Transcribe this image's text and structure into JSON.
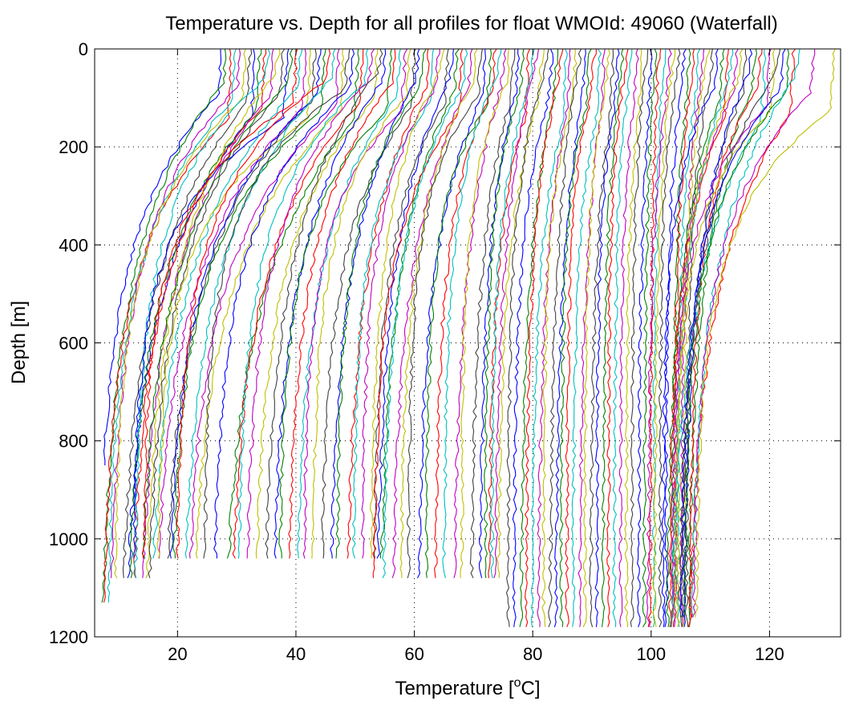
{
  "chart_data": {
    "type": "line",
    "title": "Temperature vs. Depth for all profiles for float WMOId: 49060 (Waterfall)",
    "xlabel_main": "Temperature [",
    "xlabel_sup": "o",
    "xlabel_tail": "C]",
    "ylabel": "Depth [m]",
    "xlim": [
      6,
      132
    ],
    "ylim": [
      0,
      1200
    ],
    "y_reversed": true,
    "grid": true,
    "x_ticks": [
      20,
      40,
      60,
      80,
      100,
      120
    ],
    "y_ticks": [
      0,
      200,
      400,
      600,
      800,
      1000,
      1200
    ],
    "x_tick_labels": [
      "20",
      "40",
      "60",
      "80",
      "100",
      "120"
    ],
    "y_tick_labels": [
      "0",
      "200",
      "400",
      "600",
      "800",
      "1000",
      "1200"
    ],
    "color_cycle": [
      "#0000ff",
      "#008000",
      "#ff0000",
      "#00bfbf",
      "#bf00bf",
      "#bfbf00",
      "#404040"
    ],
    "series_groups": [
      {
        "start_offset": 0,
        "count": 1,
        "surface_x": [
          27.5
        ],
        "bottom_x": [
          6.5
        ],
        "max_depth": 850
      },
      {
        "start_offset": 0.8,
        "count": 3,
        "surface_x": [
          28.3,
          29.1,
          29.9
        ],
        "bottom_x": [
          6.8,
          7.3,
          7.8
        ],
        "max_depth": 1130
      },
      {
        "start_offset": 0,
        "count": 10,
        "surface_x": [
          30.7,
          31.5,
          32.3,
          33.1,
          33.9,
          34.7,
          35.5,
          36.3,
          37.1,
          37.9
        ],
        "bottom_x": [
          8.5,
          9.2,
          9.9,
          10.6,
          11.3,
          12.0,
          12.7,
          13.4,
          14.1,
          14.5
        ],
        "max_depth": 1085
      },
      {
        "start_offset": 0,
        "count": 13,
        "surface_x": [
          38.5,
          39.3,
          40.1,
          40.9,
          41.7,
          42.5,
          43.3,
          44.1,
          44.9,
          45.7,
          46.5,
          47.3,
          48.1
        ],
        "bottom_x": [
          12.5,
          13.3,
          14.1,
          14.9,
          15.7,
          16.5,
          17.3,
          18.1,
          18.9,
          19.7,
          20.5,
          21.3,
          22.1
        ],
        "max_depth": 1040
      },
      {
        "start_offset": 0,
        "count": 12,
        "surface_x": [
          48.9,
          49.7,
          50.5,
          51.3,
          52.1,
          52.9,
          53.7,
          54.5,
          55.3,
          56.1,
          56.9,
          57.7
        ],
        "bottom_x": [
          24.5,
          25.9,
          27.3,
          28.7,
          30.1,
          31.5,
          32.9,
          34.3,
          35.7,
          37.1,
          38.5,
          39.9
        ],
        "max_depth": 1040
      },
      {
        "start_offset": 0,
        "count": 12,
        "surface_x": [
          58.5,
          59.3,
          60.1,
          60.9,
          61.7,
          62.5,
          63.3,
          64.1,
          64.9,
          65.7,
          66.5,
          67.3
        ],
        "bottom_x": [
          41.3,
          42.7,
          44.1,
          45.5,
          46.9,
          48.3,
          49.7,
          51.1,
          52.5,
          53.1,
          53.5,
          54.0
        ],
        "max_depth": 1040
      },
      {
        "start_offset": 0,
        "count": 12,
        "surface_x": [
          68.1,
          68.9,
          69.7,
          70.5,
          71.3,
          72.1,
          72.9,
          73.7,
          74.5,
          75.3,
          76.1,
          76.9
        ],
        "bottom_x": [
          53.0,
          54.5,
          56.0,
          57.5,
          59.0,
          60.5,
          62.0,
          63.5,
          65.0,
          66.5,
          68.0,
          69.5
        ],
        "max_depth": 1085
      },
      {
        "start_offset": 0,
        "count": 6,
        "surface_x": [
          77.7,
          78.5,
          79.3,
          80.1,
          80.9,
          81.7
        ],
        "bottom_x": [
          71.0,
          72.0,
          72.5,
          73.0,
          73.5,
          74.0
        ],
        "max_depth": 1085
      },
      {
        "start_offset": 0,
        "count": 14,
        "surface_x": [
          82.5,
          83.3,
          84.1,
          84.9,
          85.7,
          86.5,
          87.3,
          88.1,
          88.9,
          89.7,
          90.5,
          91.3,
          92.1,
          92.9
        ],
        "bottom_x": [
          75.8,
          76.8,
          77.8,
          78.8,
          79.8,
          80.8,
          81.8,
          82.8,
          83.8,
          84.8,
          85.8,
          86.8,
          87.8,
          88.8
        ],
        "max_depth": 1180
      },
      {
        "start_offset": 0,
        "count": 12,
        "surface_x": [
          93.7,
          94.5,
          95.3,
          96.1,
          96.9,
          97.7,
          98.5,
          99.3,
          100.1,
          100.9,
          101.7,
          102.5
        ],
        "bottom_x": [
          89.8,
          90.8,
          91.8,
          92.8,
          93.8,
          94.8,
          95.8,
          96.8,
          97.8,
          98.8,
          99.8,
          100.5
        ],
        "max_depth": 1180
      },
      {
        "start_offset": 0,
        "count": 10,
        "surface_x": [
          103.3,
          104.1,
          104.9,
          105.7,
          106.5,
          107.3,
          108.1,
          108.9,
          109.7,
          110.5
        ],
        "bottom_x": [
          99.5,
          100.5,
          101.5,
          102.5,
          103.5,
          104.0,
          104.5,
          105.0,
          105.5,
          106.0
        ],
        "max_depth": 1180
      },
      {
        "start_offset": 0,
        "count": 10,
        "surface_x": [
          111.3,
          112.1,
          112.9,
          113.7,
          114.5,
          115.3,
          116.1,
          116.9,
          117.7,
          118.5
        ],
        "bottom_x": [
          102.0,
          102.5,
          103.0,
          103.5,
          104.0,
          104.5,
          105.0,
          105.5,
          106.0,
          106.5
        ],
        "max_depth": 1180
      },
      {
        "start_offset": 0,
        "count": 10,
        "surface_x": [
          119.3,
          120.1,
          120.9,
          121.7,
          122.5,
          123.3,
          124.1,
          124.9,
          127.5,
          131.0
        ],
        "bottom_x": [
          103.0,
          103.5,
          104.0,
          104.5,
          105.0,
          105.5,
          106.0,
          106.5,
          107.0,
          107.5
        ],
        "max_depth": 1160
      }
    ]
  }
}
